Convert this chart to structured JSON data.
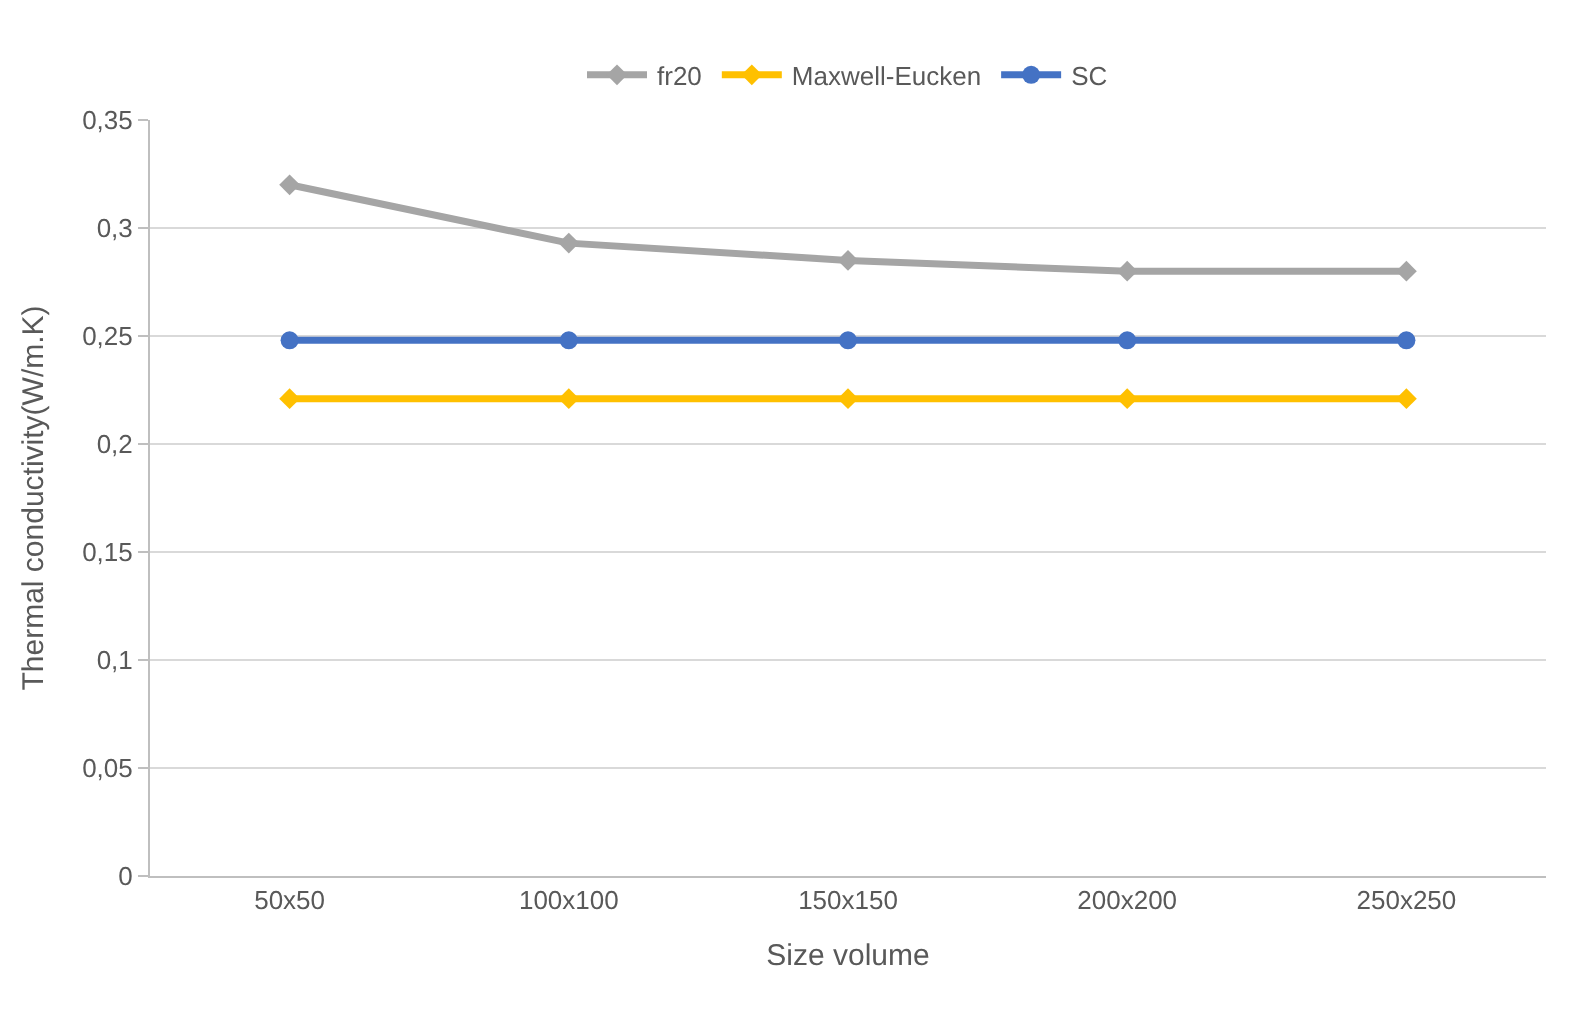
{
  "chart_data": {
    "type": "line",
    "xlabel": "Size volume",
    "ylabel": "Thermal conductivity(W/m.K)",
    "categories": [
      "50x50",
      "100x100",
      "150x150",
      "200x200",
      "250x250"
    ],
    "series": [
      {
        "name": "fr20",
        "color": "#a5a5a5",
        "marker": "diamond",
        "values": [
          0.32,
          0.293,
          0.285,
          0.28,
          0.28
        ]
      },
      {
        "name": "Maxwell-Eucken",
        "color": "#ffc000",
        "marker": "diamond",
        "values": [
          0.221,
          0.221,
          0.221,
          0.221,
          0.221
        ]
      },
      {
        "name": "SC",
        "color": "#4472c4",
        "marker": "circle",
        "values": [
          0.248,
          0.248,
          0.248,
          0.248,
          0.248
        ]
      }
    ],
    "ylim": [
      0,
      0.35
    ],
    "yticks": [
      0,
      {
        "value": 0.05,
        "label": "0,05"
      },
      {
        "value": 0.1,
        "label": "0,1"
      },
      {
        "value": 0.15,
        "label": "0,15"
      },
      {
        "value": 0.2,
        "label": "0,2"
      },
      {
        "value": 0.25,
        "label": "0,25"
      },
      {
        "value": 0.3,
        "label": "0,3"
      },
      {
        "value": 0.35,
        "label": "0,35"
      }
    ],
    "grid": "y",
    "legend": "top",
    "line_style": "solid"
  }
}
